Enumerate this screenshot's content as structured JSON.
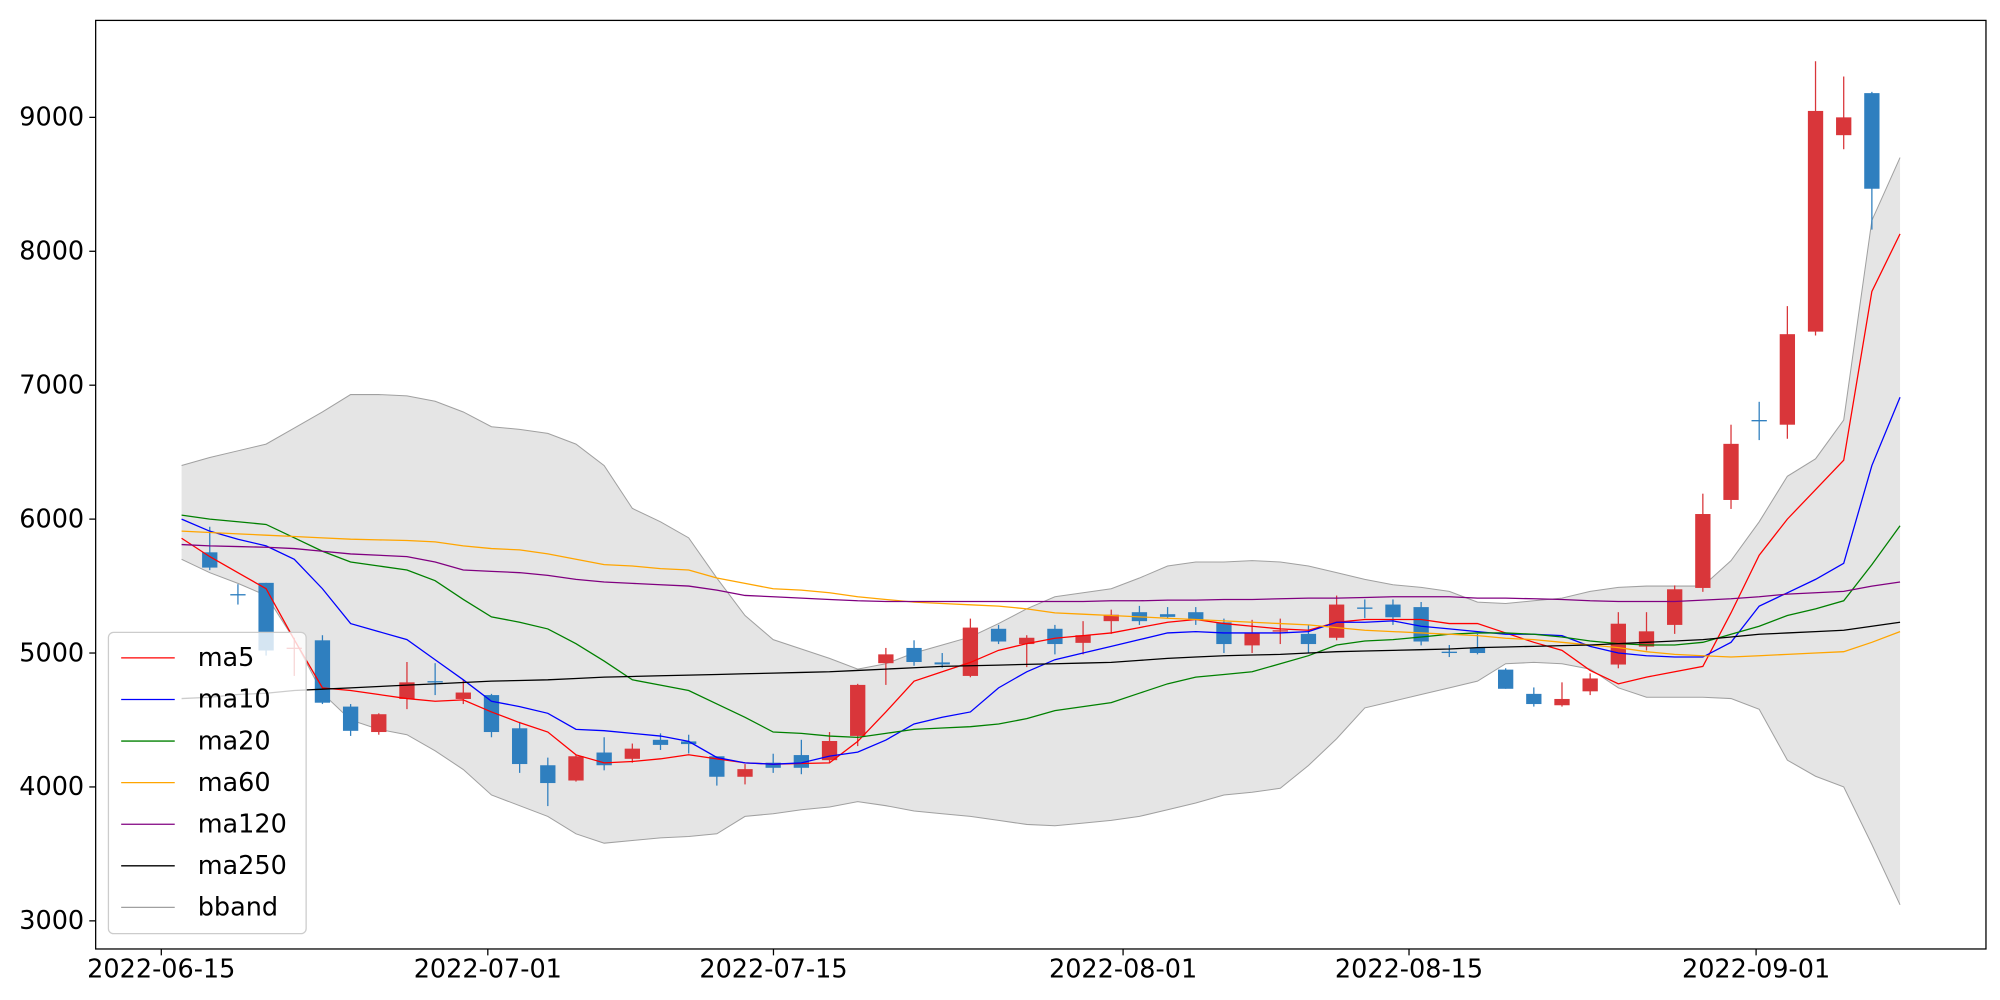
{
  "chart_data": {
    "type": "candlestick",
    "categories": [
      null,
      null,
      null,
      null,
      null,
      null,
      null,
      null,
      null,
      null,
      null,
      null,
      null,
      null,
      null,
      null,
      null,
      null,
      null,
      null,
      null,
      null,
      null,
      null,
      null,
      null,
      null,
      null,
      null,
      null,
      null,
      null,
      null,
      null,
      null,
      null,
      null,
      null,
      null,
      null,
      null,
      null,
      null,
      null,
      null,
      null,
      null,
      null,
      null,
      null,
      null,
      null,
      null,
      null,
      null,
      null,
      null,
      null,
      null,
      null,
      null,
      null
    ],
    "xlim": [
      -3.05,
      64.05
    ],
    "xticks": [
      {
        "value": -0.72,
        "label": "2022-06-15"
      },
      {
        "value": 10.87,
        "label": "2022-07-01"
      },
      {
        "value": 21.01,
        "label": "2022-07-15"
      },
      {
        "value": 33.42,
        "label": "2022-08-01"
      },
      {
        "value": 43.57,
        "label": "2022-08-15"
      },
      {
        "value": 55.89,
        "label": "2022-09-01"
      }
    ],
    "ylim": [
      2790,
      9724
    ],
    "yticks": [
      3000,
      4000,
      5000,
      6000,
      7000,
      8000,
      9000
    ],
    "grid": false,
    "legend": "lower left",
    "up_color": "#d9363a",
    "down_color": "#2f7fbf",
    "candles": {
      "open": [
        null,
        5752,
        5440,
        5524,
        5030,
        5095,
        4600,
        4410,
        4657,
        4790,
        4657,
        4686,
        4438,
        4162,
        4048,
        4257,
        4210,
        4352,
        4340,
        4229,
        4076,
        4181,
        4238,
        4200,
        4381,
        4924,
        5038,
        4930,
        4829,
        5181,
        5067,
        5181,
        5076,
        5238,
        5305,
        5290,
        5305,
        5229,
        5057,
        5160,
        5143,
        5114,
        5340,
        5362,
        5343,
        5010,
        5038,
        4876,
        4695,
        4610,
        4714,
        4914,
        5048,
        5210,
        5486,
        6143,
        6740,
        6705,
        7400,
        8867,
        9181,
        null
      ],
      "high": [
        null,
        5943,
        5514,
        5524,
        5114,
        5133,
        4619,
        4550,
        4933,
        4924,
        4800,
        4695,
        4486,
        4219,
        4240,
        4371,
        4324,
        4400,
        4390,
        4229,
        4171,
        4248,
        4352,
        4410,
        4770,
        5038,
        5095,
        5000,
        5257,
        5210,
        5133,
        5210,
        5238,
        5324,
        5352,
        5343,
        5343,
        5257,
        5248,
        5257,
        5210,
        5429,
        5400,
        5400,
        5381,
        5060,
        5143,
        4886,
        4743,
        4781,
        4848,
        5305,
        5305,
        5505,
        6190,
        6705,
        6876,
        7590,
        9419,
        9305,
        9190,
        null
      ],
      "low": [
        null,
        5619,
        5362,
        4981,
        4829,
        4619,
        4381,
        4390,
        4581,
        4686,
        4619,
        4371,
        4105,
        3857,
        4040,
        4124,
        4181,
        4276,
        4250,
        4010,
        4019,
        4105,
        4095,
        4181,
        4305,
        4762,
        4905,
        4890,
        4819,
        5067,
        4895,
        4990,
        4990,
        5143,
        5210,
        5257,
        5210,
        5000,
        5000,
        5067,
        5000,
        5095,
        5260,
        5210,
        5057,
        4970,
        4990,
        4733,
        4600,
        4600,
        4686,
        4886,
        5019,
        5143,
        5457,
        6076,
        6590,
        6600,
        7371,
        8762,
        8162,
        null
      ],
      "close": [
        null,
        5638,
        5430,
        5019,
        5040,
        4629,
        4419,
        4543,
        4781,
        4780,
        4705,
        4410,
        4171,
        4029,
        4229,
        4162,
        4286,
        4314,
        4320,
        4076,
        4133,
        4143,
        4143,
        4343,
        4762,
        4990,
        4933,
        4915,
        5190,
        5086,
        5114,
        5067,
        5133,
        5286,
        5238,
        5270,
        5248,
        5067,
        5152,
        5170,
        5067,
        5362,
        5330,
        5267,
        5086,
        5000,
        5000,
        4733,
        4619,
        4657,
        4810,
        5219,
        5162,
        5476,
        6038,
        6562,
        6730,
        7381,
        9048,
        9000,
        8467,
        null
      ]
    },
    "lines": [
      {
        "name": "ma5",
        "color": "#ff0000",
        "values": [
          5857,
          5720,
          5600,
          5480,
          5100,
          4740,
          4720,
          4690,
          4660,
          4640,
          4650,
          4560,
          4480,
          4410,
          4240,
          4180,
          4190,
          4210,
          4240,
          4210,
          4180,
          4170,
          4175,
          4180,
          4340,
          4560,
          4790,
          4860,
          4930,
          5020,
          5070,
          5110,
          5130,
          5150,
          5190,
          5230,
          5250,
          5220,
          5200,
          5180,
          5170,
          5230,
          5250,
          5250,
          5250,
          5220,
          5220,
          5150,
          5080,
          5020,
          4870,
          4770,
          4820,
          4860,
          4900,
          5300,
          5730,
          6000,
          6220,
          6440,
          7700,
          8130
        ]
      },
      {
        "name": "ma10",
        "color": "#0000ff",
        "values": [
          6000,
          5910,
          5850,
          5800,
          5700,
          5480,
          5220,
          5160,
          5100,
          4950,
          4800,
          4640,
          4600,
          4550,
          4430,
          4420,
          4400,
          4380,
          4340,
          4220,
          4180,
          4170,
          4180,
          4230,
          4260,
          4350,
          4470,
          4520,
          4560,
          4740,
          4860,
          4950,
          5000,
          5050,
          5100,
          5150,
          5160,
          5150,
          5150,
          5150,
          5160,
          5230,
          5230,
          5240,
          5200,
          5180,
          5160,
          5140,
          5140,
          5130,
          5050,
          5000,
          4980,
          4970,
          4970,
          5080,
          5350,
          5450,
          5550,
          5670,
          6400,
          6910
        ]
      },
      {
        "name": "ma20",
        "color": "#008000",
        "values": [
          6030,
          6000,
          5980,
          5960,
          5860,
          5760,
          5680,
          5650,
          5620,
          5540,
          5400,
          5270,
          5230,
          5180,
          5070,
          4940,
          4800,
          4760,
          4720,
          4620,
          4520,
          4410,
          4400,
          4380,
          4370,
          4400,
          4430,
          4440,
          4450,
          4470,
          4510,
          4570,
          4600,
          4630,
          4700,
          4770,
          4820,
          4840,
          4860,
          4920,
          4980,
          5060,
          5090,
          5100,
          5120,
          5140,
          5150,
          5150,
          5140,
          5120,
          5090,
          5070,
          5060,
          5060,
          5080,
          5140,
          5200,
          5280,
          5330,
          5390,
          5660,
          5950
        ]
      },
      {
        "name": "ma60",
        "color": "#ffa500",
        "values": [
          5910,
          5900,
          5890,
          5880,
          5870,
          5860,
          5850,
          5845,
          5840,
          5830,
          5800,
          5780,
          5770,
          5740,
          5700,
          5660,
          5650,
          5630,
          5620,
          5560,
          5520,
          5480,
          5470,
          5450,
          5420,
          5400,
          5380,
          5370,
          5360,
          5350,
          5330,
          5300,
          5290,
          5280,
          5270,
          5260,
          5250,
          5240,
          5230,
          5220,
          5210,
          5190,
          5170,
          5160,
          5150,
          5140,
          5130,
          5110,
          5100,
          5080,
          5060,
          5040,
          5010,
          4990,
          4980,
          4970,
          4980,
          4990,
          5000,
          5010,
          5080,
          5160
        ]
      },
      {
        "name": "ma120",
        "color": "#800080",
        "values": [
          5810,
          5800,
          5795,
          5790,
          5780,
          5760,
          5740,
          5730,
          5720,
          5680,
          5620,
          5610,
          5600,
          5580,
          5550,
          5530,
          5520,
          5510,
          5500,
          5470,
          5430,
          5420,
          5410,
          5400,
          5390,
          5385,
          5385,
          5385,
          5385,
          5385,
          5385,
          5385,
          5385,
          5390,
          5390,
          5395,
          5395,
          5400,
          5400,
          5405,
          5410,
          5410,
          5415,
          5420,
          5420,
          5420,
          5410,
          5410,
          5405,
          5400,
          5390,
          5385,
          5385,
          5385,
          5395,
          5405,
          5420,
          5440,
          5450,
          5460,
          5500,
          5530
        ]
      },
      {
        "name": "ma250",
        "color": "#000000",
        "values": [
          4660,
          4670,
          4690,
          4700,
          4720,
          4730,
          4740,
          4750,
          4760,
          4770,
          4780,
          4790,
          4795,
          4800,
          4810,
          4820,
          4825,
          4830,
          4835,
          4840,
          4845,
          4850,
          4855,
          4860,
          4870,
          4880,
          4890,
          4900,
          4905,
          4910,
          4915,
          4920,
          4925,
          4930,
          4945,
          4960,
          4970,
          4980,
          4985,
          4990,
          5000,
          5010,
          5015,
          5020,
          5025,
          5030,
          5040,
          5045,
          5050,
          5055,
          5060,
          5070,
          5080,
          5090,
          5100,
          5120,
          5140,
          5150,
          5160,
          5170,
          5200,
          5230
        ]
      }
    ],
    "band": {
      "name": "bband",
      "color": "#a0a0a0",
      "fill": "#e5e5e5",
      "upper": [
        6400,
        6460,
        6510,
        6560,
        6680,
        6800,
        6930,
        6930,
        6920,
        6880,
        6800,
        6690,
        6670,
        6640,
        6560,
        6400,
        6080,
        5980,
        5860,
        5560,
        5280,
        5100,
        5030,
        4960,
        4880,
        4920,
        5000,
        5060,
        5120,
        5220,
        5330,
        5420,
        5450,
        5480,
        5560,
        5650,
        5680,
        5680,
        5690,
        5680,
        5650,
        5600,
        5550,
        5510,
        5490,
        5460,
        5380,
        5370,
        5390,
        5410,
        5460,
        5490,
        5500,
        5500,
        5500,
        5690,
        5980,
        6320,
        6450,
        6740,
        8230,
        8700
      ],
      "lower": [
        5700,
        5600,
        5520,
        5430,
        5100,
        4700,
        4500,
        4430,
        4390,
        4270,
        4130,
        3940,
        3860,
        3780,
        3650,
        3580,
        3600,
        3620,
        3630,
        3650,
        3780,
        3800,
        3830,
        3850,
        3890,
        3860,
        3820,
        3800,
        3780,
        3750,
        3720,
        3710,
        3730,
        3750,
        3780,
        3830,
        3880,
        3940,
        3960,
        3990,
        4160,
        4360,
        4590,
        4640,
        4690,
        4740,
        4790,
        4920,
        4930,
        4920,
        4880,
        4740,
        4670,
        4670,
        4670,
        4660,
        4580,
        4200,
        4080,
        4000,
        3570,
        3120
      ]
    }
  }
}
